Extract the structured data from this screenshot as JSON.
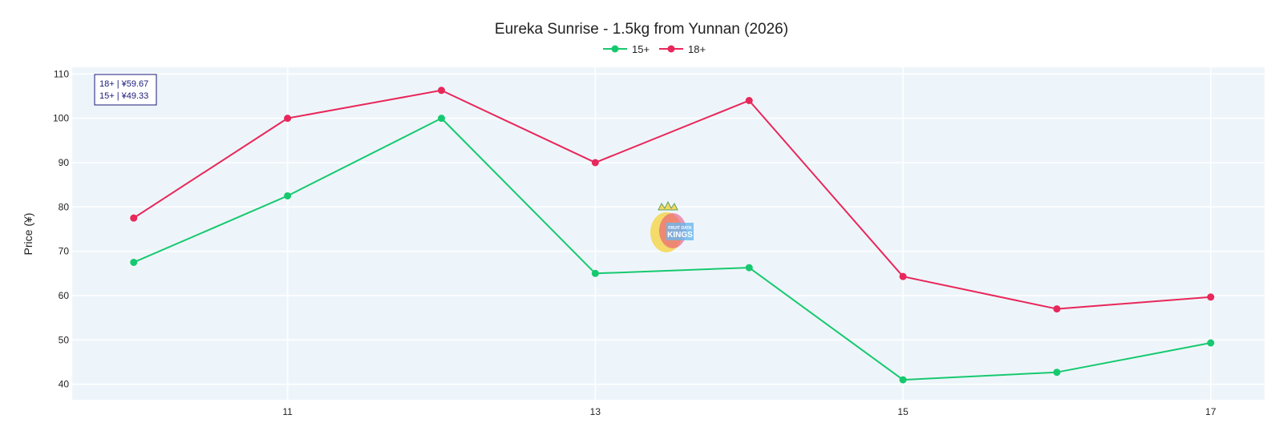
{
  "chart_data": {
    "type": "line",
    "title": "Eureka Sunrise - 1.5kg from Yunnan (2026)",
    "xlabel": "",
    "ylabel": "Price (¥)",
    "x": [
      10,
      11,
      12,
      13,
      14,
      15,
      16,
      17
    ],
    "x_tick_labels": [
      "11",
      "13",
      "15",
      "17"
    ],
    "x_tick_values": [
      11,
      13,
      15,
      17
    ],
    "xlim": [
      9.6,
      17.35
    ],
    "ylim": [
      36.5,
      111.5
    ],
    "y_ticks": [
      40,
      50,
      60,
      70,
      80,
      90,
      100,
      110
    ],
    "grid": true,
    "legend_position": "top-center",
    "series": [
      {
        "name": "15+",
        "color": "#16c96f",
        "values": [
          67.5,
          82.5,
          100,
          65,
          66.3,
          41,
          42.7,
          49.33
        ]
      },
      {
        "name": "18+",
        "color": "#e8275a",
        "values": [
          77.5,
          100,
          106.3,
          90,
          104,
          64.3,
          57,
          59.67
        ]
      }
    ],
    "annotation": {
      "lines": [
        "18+ | ¥59.67",
        "15+ | ¥49.33"
      ],
      "border_color": "#1a1a7a"
    },
    "plot_background": "#eef5fa",
    "watermark": {
      "lines": [
        "FRUIT DATA",
        "KINGS"
      ]
    }
  }
}
